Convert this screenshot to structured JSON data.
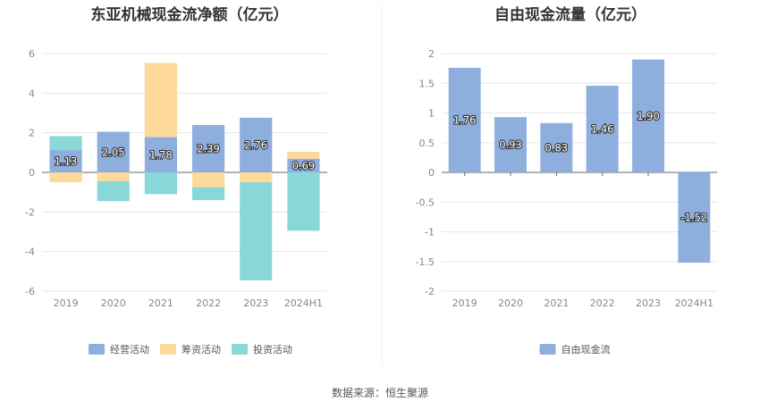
{
  "source_label": "数据来源：恒生聚源",
  "chart_data": [
    {
      "type": "bar",
      "stacked": true,
      "title": "东亚机械现金流净额（亿元）",
      "categories": [
        "2019",
        "2020",
        "2021",
        "2022",
        "2023",
        "2024H1"
      ],
      "ylim": [
        -6,
        6
      ],
      "yticks": [
        6,
        4,
        2,
        0,
        -2,
        -4,
        -6
      ],
      "grid": true,
      "legend_position": "bottom",
      "series": [
        {
          "name": "经营活动",
          "color": "#8eaedd",
          "values": [
            1.13,
            2.05,
            1.78,
            2.39,
            2.76,
            0.69
          ],
          "labels": [
            "1.13",
            "2.05",
            "1.78",
            "2.39",
            "2.76",
            "0.69"
          ]
        },
        {
          "name": "筹资活动",
          "color": "#fdd99a",
          "values": [
            -0.5,
            -0.45,
            3.75,
            -0.75,
            -0.5,
            0.35
          ]
        },
        {
          "name": "投资活动",
          "color": "#88d8d8",
          "values": [
            0.7,
            -1.0,
            -1.1,
            -0.65,
            -4.95,
            -2.95
          ]
        }
      ]
    },
    {
      "type": "bar",
      "title": "自由现金流量（亿元）",
      "categories": [
        "2019",
        "2020",
        "2021",
        "2022",
        "2023",
        "2024H1"
      ],
      "ylim": [
        -2,
        2
      ],
      "yticks": [
        "2",
        "1.5",
        "1",
        "0.5",
        "0",
        "-0.5",
        "-1",
        "-1.5",
        "-2"
      ],
      "grid": true,
      "legend_position": "bottom",
      "series": [
        {
          "name": "自由现金流",
          "color": "#8eaedd",
          "values": [
            1.76,
            0.93,
            0.83,
            1.46,
            1.9,
            -1.52
          ],
          "labels": [
            "1.76",
            "0.93",
            "0.83",
            "1.46",
            "1.90",
            "-1.52"
          ]
        }
      ]
    }
  ]
}
